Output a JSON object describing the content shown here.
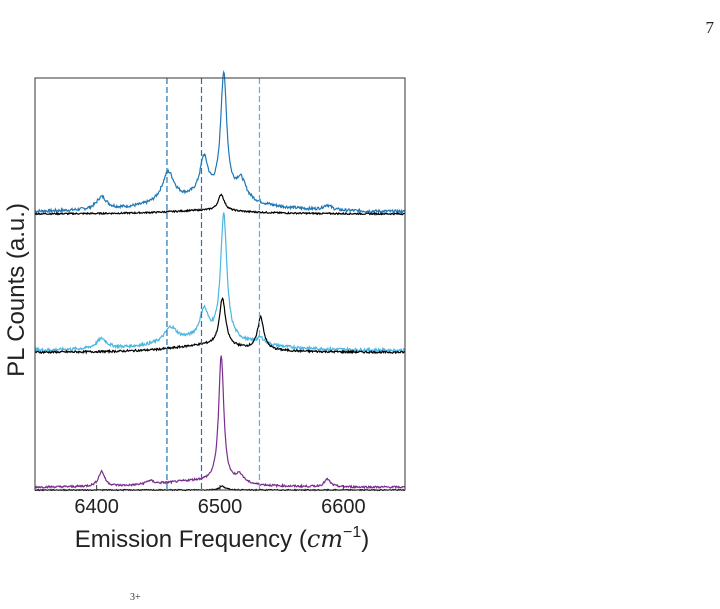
{
  "page": {
    "number": "7",
    "footer_fragment": "3+"
  },
  "chart_data": {
    "type": "line",
    "title": "",
    "xlabel": "Emission Frequency (cm⁻¹)",
    "xlabel_parts": {
      "text": "Emission Frequency (",
      "math_base": "cm",
      "math_sup": "−1",
      "close": ")"
    },
    "ylabel": "PL Counts (a.u.)",
    "xlim": [
      6350,
      6650
    ],
    "ylim": [
      0,
      3.3
    ],
    "x_ticks": [
      6400,
      6500,
      6600
    ],
    "y_ticks_shown": false,
    "grid": false,
    "legend": "none",
    "colors": {
      "dark_blue": "#1f77b4",
      "light_blue": "#4bb6e0",
      "purple": "#7b2c8f",
      "black": "#000000"
    },
    "vlines": [
      {
        "x": 6457,
        "color": "#1f77b4",
        "style": "dashed"
      },
      {
        "x": 6485,
        "color": "#1f77b4",
        "style": "dashed"
      },
      {
        "x": 6532,
        "color": "#4bb6e0",
        "style": "dashed"
      }
    ],
    "series": [
      {
        "color": "#1f77b4",
        "baseline": 2.22,
        "noise": 0.012,
        "peaks": [
          {
            "x": 6503,
            "h": 0.98,
            "w": 3
          },
          {
            "x": 6487,
            "h": 0.3,
            "w": 4
          },
          {
            "x": 6458,
            "h": 0.24,
            "w": 6
          },
          {
            "x": 6517,
            "h": 0.16,
            "w": 5
          },
          {
            "x": 6404,
            "h": 0.1,
            "w": 5
          },
          {
            "x": 6587,
            "h": 0.04,
            "w": 4
          },
          {
            "x": 6490,
            "h": 0.12,
            "w": 45
          }
        ]
      },
      {
        "color": "#000000",
        "baseline": 2.21,
        "noise": 0.006,
        "peaks": [
          {
            "x": 6501,
            "h": 0.13,
            "w": 3
          },
          {
            "x": 6490,
            "h": 0.03,
            "w": 40
          }
        ]
      },
      {
        "color": "#4bb6e0",
        "baseline": 1.11,
        "noise": 0.012,
        "peaks": [
          {
            "x": 6503,
            "h": 1.0,
            "w": 3
          },
          {
            "x": 6487,
            "h": 0.22,
            "w": 4
          },
          {
            "x": 6460,
            "h": 0.12,
            "w": 6
          },
          {
            "x": 6404,
            "h": 0.08,
            "w": 5
          },
          {
            "x": 6533,
            "h": 0.05,
            "w": 4
          },
          {
            "x": 6490,
            "h": 0.1,
            "w": 45
          }
        ]
      },
      {
        "color": "#000000",
        "baseline": 1.1,
        "noise": 0.008,
        "peaks": [
          {
            "x": 6502,
            "h": 0.38,
            "w": 3
          },
          {
            "x": 6533,
            "h": 0.26,
            "w": 3
          },
          {
            "x": 6490,
            "h": 0.06,
            "w": 35
          }
        ]
      },
      {
        "color": "#7b2c8f",
        "baseline": 0.02,
        "noise": 0.008,
        "peaks": [
          {
            "x": 6501,
            "h": 1.02,
            "w": 2.5
          },
          {
            "x": 6404,
            "h": 0.12,
            "w": 3
          },
          {
            "x": 6516,
            "h": 0.07,
            "w": 4
          },
          {
            "x": 6587,
            "h": 0.06,
            "w": 3
          },
          {
            "x": 6443,
            "h": 0.03,
            "w": 4
          },
          {
            "x": 6480,
            "h": 0.05,
            "w": 35
          }
        ]
      },
      {
        "color": "#000000",
        "baseline": 0.0,
        "noise": 0.004,
        "peaks": [
          {
            "x": 6502,
            "h": 0.03,
            "w": 3
          }
        ]
      }
    ]
  }
}
